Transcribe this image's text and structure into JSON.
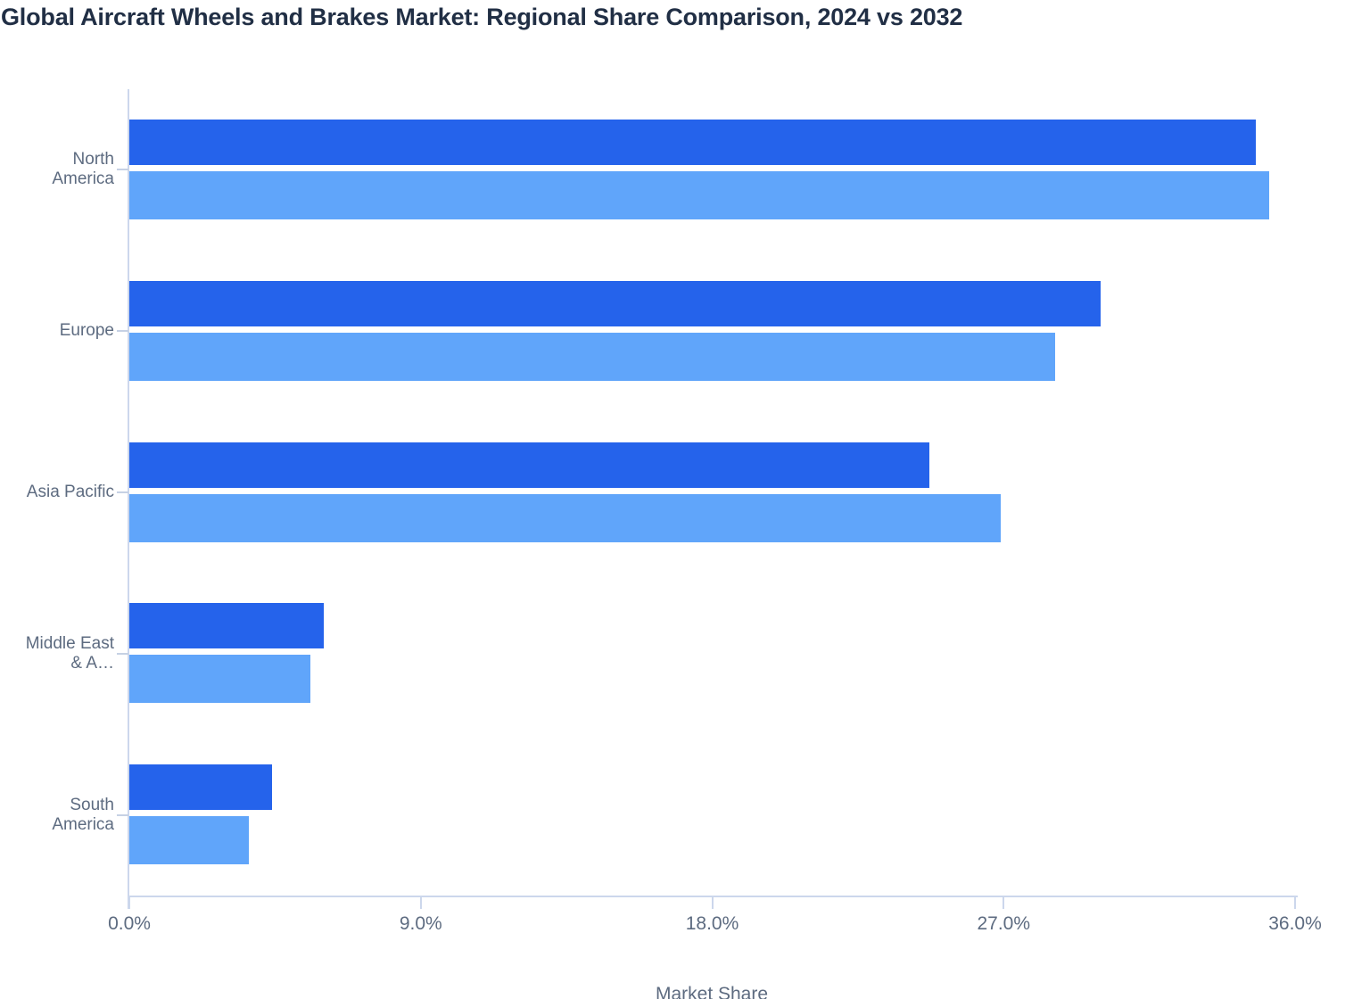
{
  "title": "Global Aircraft Wheels and Brakes Market: Regional Share Comparison, 2024 vs 2032",
  "chart_data": {
    "type": "bar",
    "orientation": "horizontal",
    "title": "Global Aircraft Wheels and Brakes Market: Regional Share Comparison, 2024 vs 2032",
    "xlabel": "Market Share",
    "xlim": [
      0,
      36
    ],
    "x_tick_values": [
      0,
      9,
      18,
      27,
      36
    ],
    "x_tick_labels": [
      "0.0%",
      "9.0%",
      "18.0%",
      "27.0%",
      "36.0%"
    ],
    "grid": false,
    "legend": "none",
    "categories": [
      "North America",
      "Europe",
      "Asia Pacific",
      "Middle East & A…",
      "South America"
    ],
    "category_lines": [
      [
        "North",
        "America"
      ],
      [
        "Europe"
      ],
      [
        "Asia Pacific"
      ],
      [
        "Middle East",
        "& A…"
      ],
      [
        "South",
        "America"
      ]
    ],
    "series": [
      {
        "name": "2024",
        "color": "#2563eb",
        "values": [
          34.8,
          30.0,
          24.7,
          6.0,
          4.4
        ]
      },
      {
        "name": "2032",
        "color": "#60a5fa",
        "values": [
          35.2,
          28.6,
          26.9,
          5.6,
          3.7
        ]
      }
    ]
  },
  "colors": {
    "bar_2024": "#2563eb",
    "bar_2032": "#60a5fa",
    "axis_line": "#ccd7ec",
    "label_text": "#5d6b80",
    "title_text": "#212f45",
    "background": "#ffffff"
  }
}
